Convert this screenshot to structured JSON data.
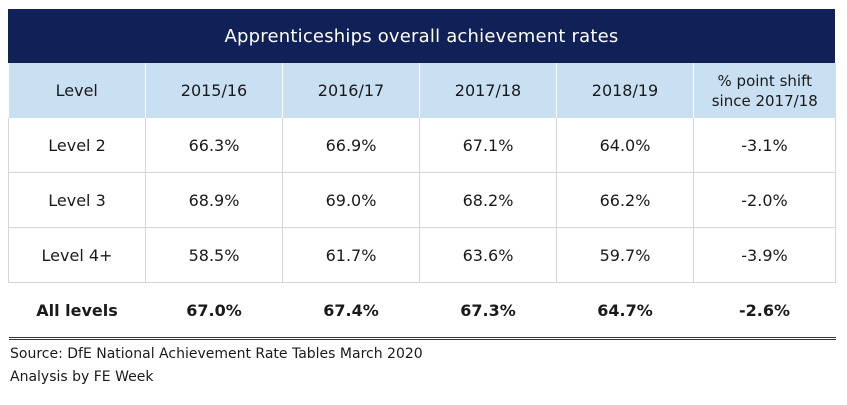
{
  "title": "Apprenticeships overall achievement rates",
  "headers": [
    "Level",
    "2015/16",
    "2016/17",
    "2017/18",
    "2018/19",
    "% point shift\nsince 2017/18"
  ],
  "rows": [
    [
      "Level 2",
      "66.3%",
      "66.9%",
      "67.1%",
      "64.0%",
      "-3.1%"
    ],
    [
      "Level 3",
      "68.9%",
      "69.0%",
      "68.2%",
      "66.2%",
      "-2.0%"
    ],
    [
      "Level 4+",
      "58.5%",
      "61.7%",
      "63.6%",
      "59.7%",
      "-3.9%"
    ]
  ],
  "total_row": [
    "All levels",
    "67.0%",
    "67.4%",
    "67.3%",
    "64.7%",
    "-2.6%"
  ],
  "source": "Source: DfE National Achievement Rate Tables March 2020",
  "analysis": "Analysis by FE Week",
  "colors": {
    "title_bg": "#0f2157",
    "header_bg": "#c9dff2",
    "border": "#d6d6d6"
  }
}
